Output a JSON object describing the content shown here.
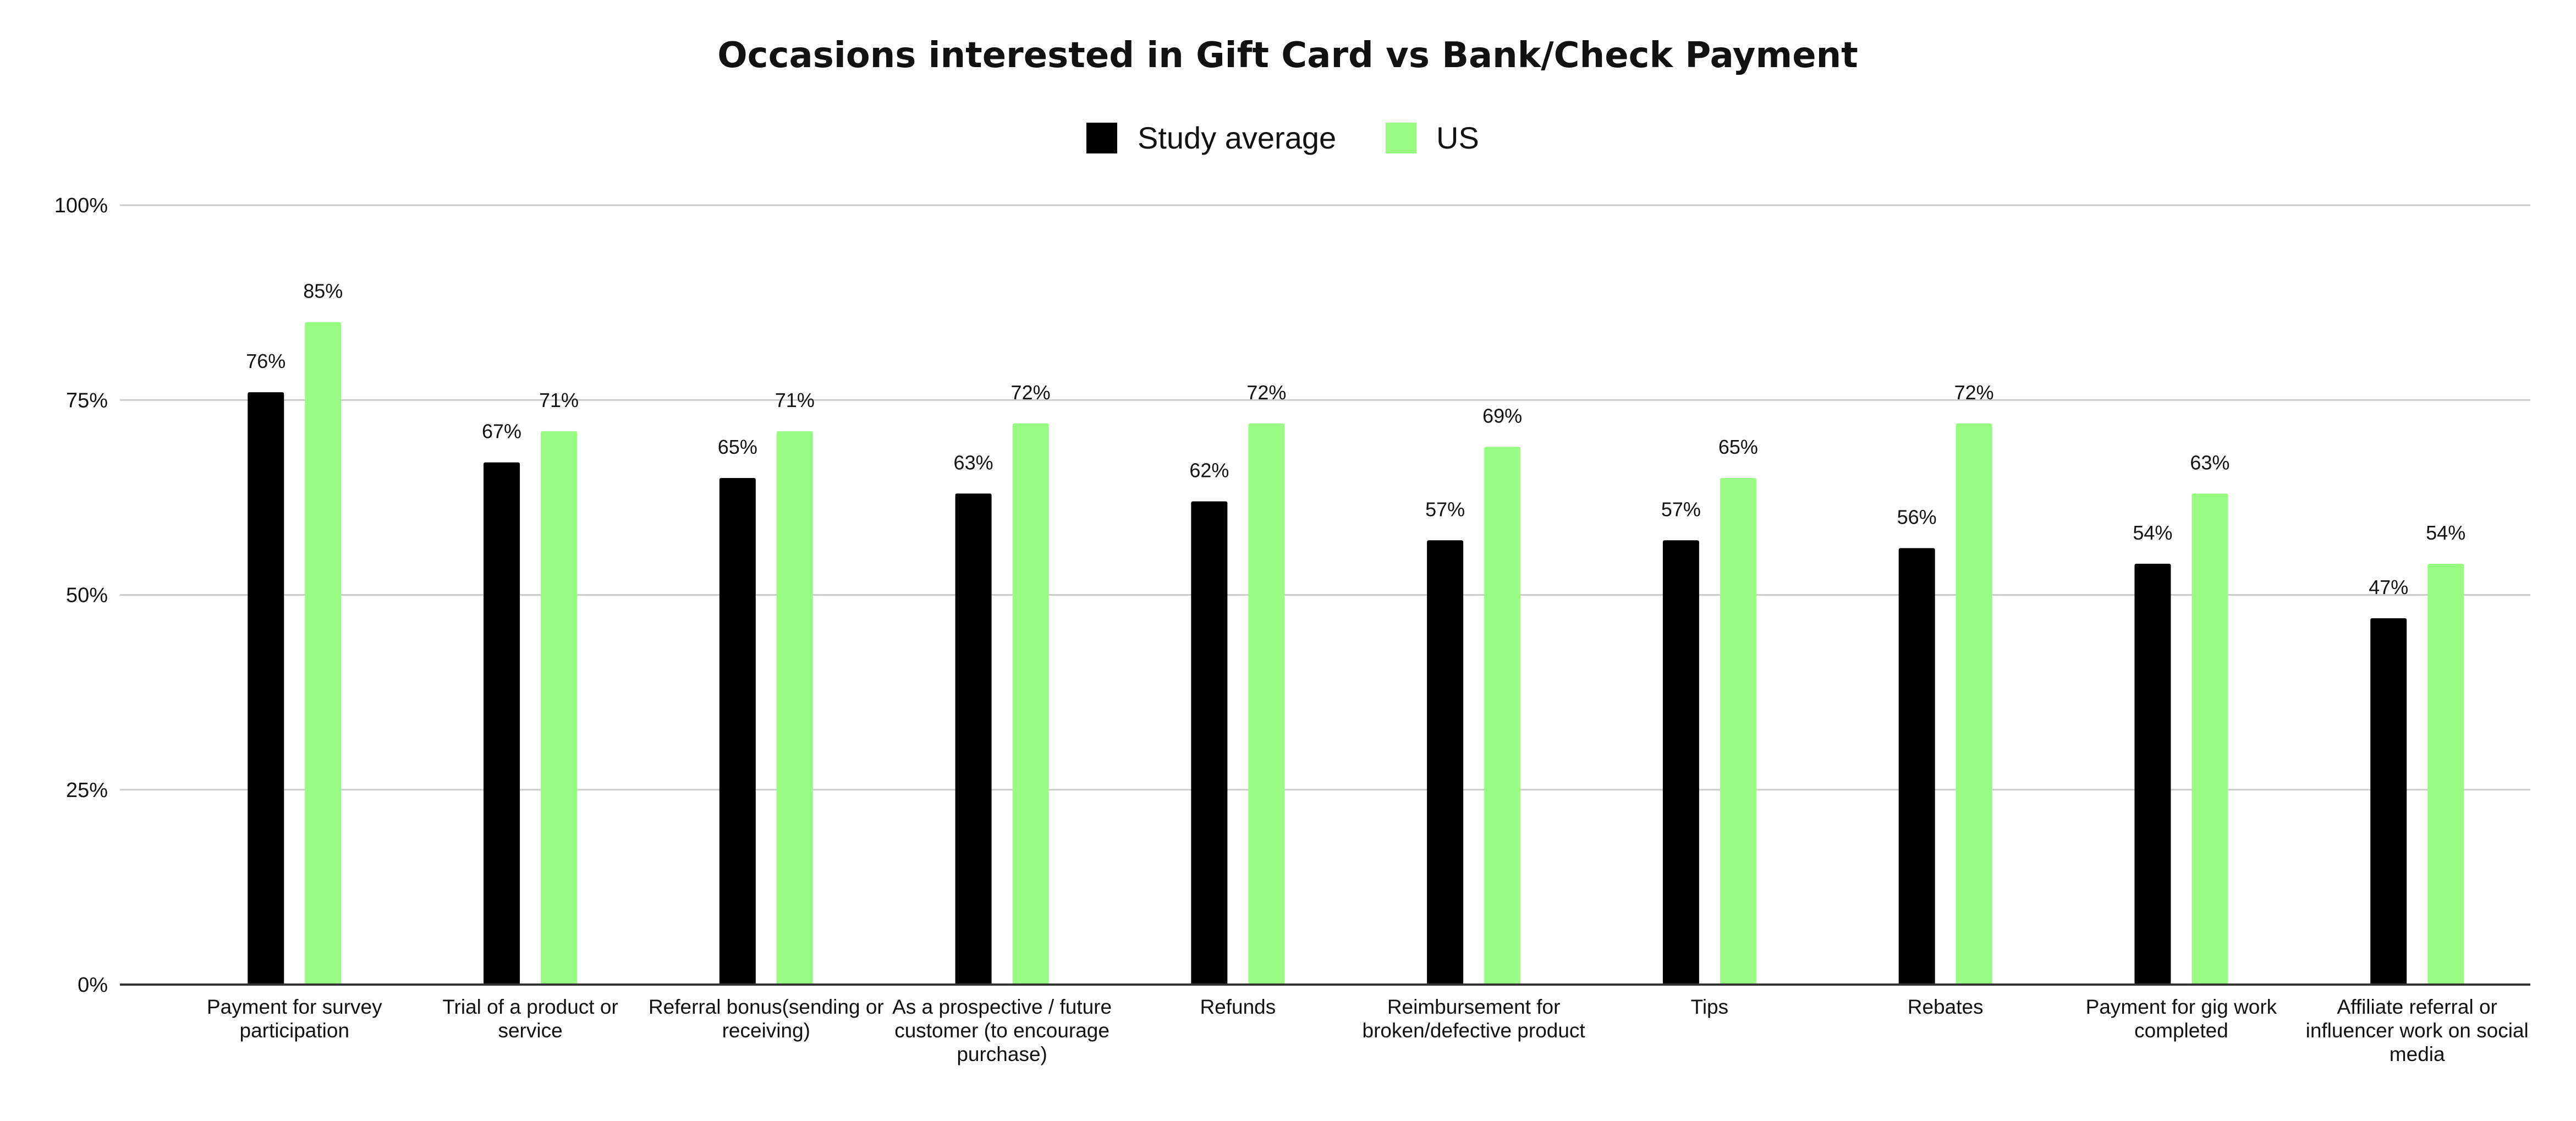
{
  "chart_data": {
    "type": "bar",
    "title": "Occasions interested in Gift Card vs Bank/Check Payment",
    "xlabel": "",
    "ylabel": "",
    "ylim": [
      0,
      100
    ],
    "yticks": [
      "0%",
      "25%",
      "50%",
      "75%",
      "100%"
    ],
    "ytick_values": [
      0,
      25,
      50,
      75,
      100
    ],
    "grid": true,
    "legend_position": "top-center",
    "categories": [
      [
        "Payment for survey",
        "participation"
      ],
      [
        "Trial of a product or",
        "service"
      ],
      [
        "Referral bonus(sending or",
        "receiving)"
      ],
      [
        "As a prospective / future",
        "customer (to encourage",
        "purchase)"
      ],
      [
        "Refunds"
      ],
      [
        "Reimbursement for",
        "broken/defective product"
      ],
      [
        "Tips"
      ],
      [
        "Rebates"
      ],
      [
        "Payment for gig work",
        "completed"
      ],
      [
        "Affiliate referral or",
        "influencer work on social",
        "media"
      ]
    ],
    "series": [
      {
        "name": "Study average",
        "color": "#000000",
        "values": [
          76,
          67,
          65,
          63,
          62,
          57,
          57,
          56,
          54,
          47
        ],
        "labels": [
          "76%",
          "67%",
          "65%",
          "63%",
          "62%",
          "57%",
          "57%",
          "56%",
          "54%",
          "47%"
        ]
      },
      {
        "name": "US",
        "color": "#97fc81",
        "values": [
          85,
          71,
          71,
          72,
          72,
          69,
          65,
          72,
          63,
          54
        ],
        "labels": [
          "85%",
          "71%",
          "71%",
          "72%",
          "72%",
          "69%",
          "65%",
          "72%",
          "63%",
          "54%"
        ]
      }
    ]
  }
}
